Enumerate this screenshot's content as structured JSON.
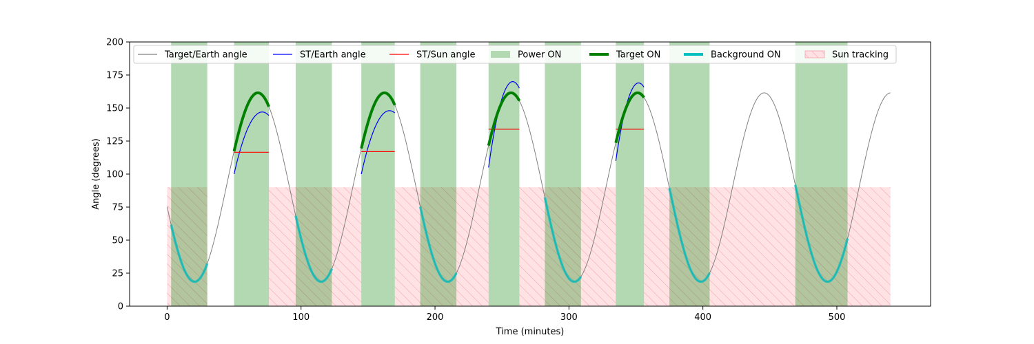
{
  "chart_data": {
    "type": "line",
    "title": "",
    "xlabel": "Time (minutes)",
    "ylabel": "Angle (degrees)",
    "xlim": [
      -28,
      570
    ],
    "ylim": [
      0,
      200
    ],
    "x_ticks": [
      0,
      100,
      200,
      300,
      400,
      500
    ],
    "y_ticks": [
      0,
      25,
      50,
      75,
      100,
      125,
      150,
      175,
      200
    ],
    "grid": false,
    "legend_placement": "top",
    "legend": [
      {
        "label": "Target/Earth angle",
        "kind": "line",
        "color": "#808080"
      },
      {
        "label": "ST/Earth angle",
        "kind": "line",
        "color": "#0000ff"
      },
      {
        "label": "ST/Sun angle",
        "kind": "line",
        "color": "#ff0000"
      },
      {
        "label": "Power ON",
        "kind": "patch",
        "color": "#b3d9b3"
      },
      {
        "label": "Target ON",
        "kind": "thickline",
        "color": "#008000"
      },
      {
        "label": "Background ON",
        "kind": "thickline",
        "color": "#00bfbf"
      },
      {
        "label": "Sun tracking",
        "kind": "hatch",
        "color": "#ffe0e3"
      }
    ],
    "target_earth": {
      "t_start": 0,
      "t_end": 540,
      "period": 94.5,
      "mean": 90,
      "amplitude": 71.5,
      "t_min": 20.5
    },
    "power_on": [
      [
        3,
        30
      ],
      [
        50,
        76
      ],
      [
        96,
        123
      ],
      [
        145,
        170
      ],
      [
        189,
        216
      ],
      [
        240,
        263
      ],
      [
        282,
        309
      ],
      [
        335,
        356
      ],
      [
        375,
        405
      ],
      [
        469,
        508
      ]
    ],
    "sun_tracking": [
      [
        0,
        30
      ],
      [
        76,
        145
      ],
      [
        170,
        240
      ],
      [
        263,
        335
      ],
      [
        356,
        540
      ]
    ],
    "sun_tracking_level": 90,
    "target_on": [
      [
        50,
        76
      ],
      [
        145,
        170
      ],
      [
        240,
        263
      ],
      [
        335,
        356
      ]
    ],
    "background_on": [
      [
        3,
        30
      ],
      [
        96,
        123
      ],
      [
        189,
        216
      ],
      [
        282,
        309
      ],
      [
        375,
        405
      ],
      [
        469,
        508
      ]
    ],
    "st_earth": [
      {
        "t_start": 50,
        "t_end": 76,
        "y_start": 100,
        "y_peak": 147,
        "t_peak": 71
      },
      {
        "t_start": 145,
        "t_end": 170,
        "y_start": 100,
        "y_peak": 148,
        "t_peak": 166
      },
      {
        "t_start": 240,
        "t_end": 263,
        "y_start": 105,
        "y_peak": 170,
        "t_peak": 258
      },
      {
        "t_start": 335,
        "t_end": 356,
        "y_start": 110,
        "y_peak": 169,
        "t_peak": 352
      }
    ],
    "st_sun": [
      {
        "t_start": 50,
        "t_end": 76,
        "value": 116.5
      },
      {
        "t_start": 145,
        "t_end": 170,
        "value": 117
      },
      {
        "t_start": 240,
        "t_end": 263,
        "value": 134
      },
      {
        "t_start": 335,
        "t_end": 356,
        "value": 134
      }
    ]
  }
}
